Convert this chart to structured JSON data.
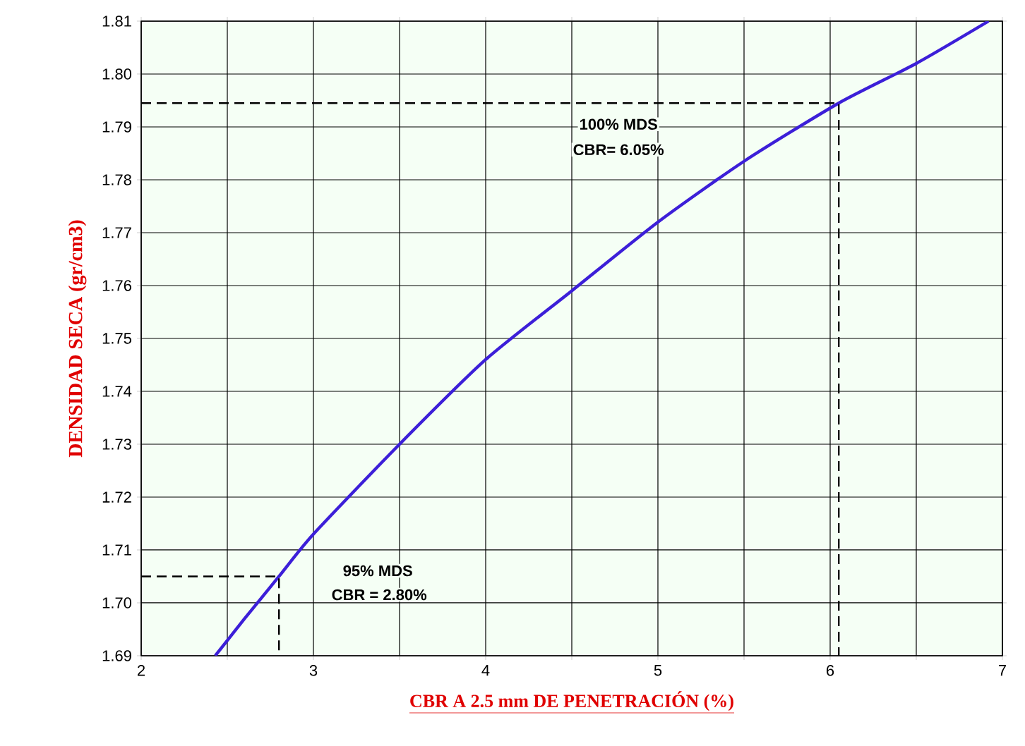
{
  "chart_data": {
    "type": "line",
    "xlabel": "CBR A 2.5 mm DE PENETRACIÓN (%)",
    "ylabel": "DENSIDAD SECA (gr/cm3)",
    "xlim": [
      2,
      7
    ],
    "ylim": [
      1.69,
      1.81
    ],
    "xticks": [
      2,
      {
        "value": 2.5,
        "label": null
      },
      3,
      {
        "value": 3.5,
        "label": null
      },
      4,
      {
        "value": 4.5,
        "label": null
      },
      5,
      {
        "value": 5.5,
        "label": null
      },
      6,
      {
        "value": 6.5,
        "label": null
      },
      7
    ],
    "yticks": [
      1.69,
      {
        "value": 1.7,
        "label": "1.70"
      },
      1.71,
      1.72,
      1.73,
      1.74,
      1.75,
      1.76,
      1.77,
      1.78,
      1.79,
      {
        "value": 1.8,
        "label": "1.80"
      },
      1.81
    ],
    "grid": true,
    "series": [
      {
        "color": "#3c1fd8",
        "x": [
          2.43,
          2.6,
          2.8,
          3.0,
          3.5,
          4.0,
          4.5,
          5.0,
          5.5,
          6.05,
          6.5,
          6.92
        ],
        "values": [
          1.69,
          1.697,
          1.705,
          1.713,
          1.73,
          1.746,
          1.759,
          1.772,
          1.7835,
          1.7945,
          1.802,
          1.81
        ]
      },
      {
        "color": "#000000",
        "line_style": "dashed",
        "x": [
          2,
          6.05,
          6.05
        ],
        "values": [
          1.7945,
          1.7945,
          1.69
        ]
      },
      {
        "color": "#000000",
        "line_style": "dashed",
        "x": [
          2,
          2.8,
          2.8
        ],
        "values": [
          1.705,
          1.705,
          1.69
        ]
      }
    ],
    "annotations": [
      "100% MDS",
      "CBR= 6.05%",
      "95% MDS",
      "CBR = 2.80%"
    ]
  }
}
